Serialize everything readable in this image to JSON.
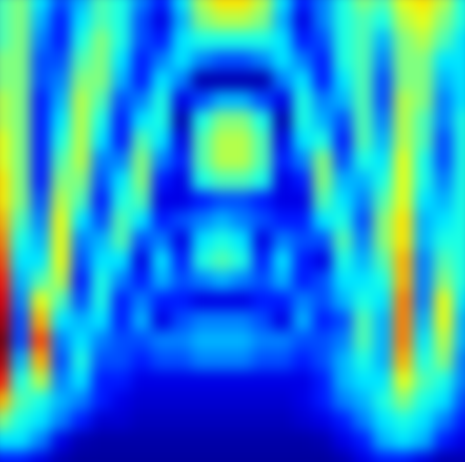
{
  "chart_data": {
    "type": "heatmap",
    "tick_labels": false,
    "zlim": [
      0,
      1
    ],
    "cells": [
      [
        0.45,
        0.5,
        0.35,
        0.2,
        0.3,
        0.45,
        0.4,
        0.25,
        0.15,
        0.35,
        0.55,
        0.65,
        0.65,
        0.55,
        0.35,
        0.15,
        0.25,
        0.4,
        0.5,
        0.45,
        0.6,
        0.65,
        0.55,
        0.4
      ],
      [
        0.45,
        0.5,
        0.3,
        0.15,
        0.35,
        0.45,
        0.4,
        0.2,
        0.1,
        0.3,
        0.5,
        0.55,
        0.55,
        0.5,
        0.3,
        0.1,
        0.25,
        0.4,
        0.45,
        0.4,
        0.55,
        0.6,
        0.5,
        0.4
      ],
      [
        0.45,
        0.5,
        0.25,
        0.15,
        0.4,
        0.5,
        0.4,
        0.2,
        0.15,
        0.35,
        0.4,
        0.4,
        0.4,
        0.4,
        0.35,
        0.15,
        0.2,
        0.4,
        0.45,
        0.3,
        0.5,
        0.55,
        0.45,
        0.35
      ],
      [
        0.5,
        0.5,
        0.2,
        0.2,
        0.45,
        0.5,
        0.35,
        0.15,
        0.25,
        0.35,
        0.25,
        0.2,
        0.2,
        0.25,
        0.35,
        0.25,
        0.15,
        0.4,
        0.45,
        0.25,
        0.5,
        0.5,
        0.35,
        0.35
      ],
      [
        0.5,
        0.5,
        0.2,
        0.25,
        0.5,
        0.5,
        0.3,
        0.15,
        0.35,
        0.25,
        0.05,
        0.05,
        0.05,
        0.05,
        0.25,
        0.35,
        0.15,
        0.35,
        0.45,
        0.2,
        0.5,
        0.5,
        0.3,
        0.35
      ],
      [
        0.55,
        0.5,
        0.15,
        0.3,
        0.55,
        0.45,
        0.2,
        0.25,
        0.4,
        0.1,
        0.2,
        0.3,
        0.3,
        0.2,
        0.1,
        0.4,
        0.25,
        0.3,
        0.45,
        0.2,
        0.55,
        0.5,
        0.25,
        0.35
      ],
      [
        0.55,
        0.5,
        0.15,
        0.35,
        0.55,
        0.4,
        0.15,
        0.35,
        0.4,
        0.05,
        0.4,
        0.5,
        0.5,
        0.4,
        0.05,
        0.4,
        0.3,
        0.2,
        0.45,
        0.25,
        0.55,
        0.45,
        0.25,
        0.4
      ],
      [
        0.6,
        0.5,
        0.15,
        0.4,
        0.55,
        0.35,
        0.15,
        0.45,
        0.35,
        0.1,
        0.45,
        0.55,
        0.55,
        0.45,
        0.1,
        0.35,
        0.4,
        0.15,
        0.45,
        0.3,
        0.55,
        0.45,
        0.2,
        0.4
      ],
      [
        0.6,
        0.5,
        0.15,
        0.45,
        0.55,
        0.25,
        0.25,
        0.5,
        0.25,
        0.15,
        0.45,
        0.55,
        0.55,
        0.45,
        0.15,
        0.25,
        0.5,
        0.2,
        0.4,
        0.35,
        0.6,
        0.4,
        0.2,
        0.4
      ],
      [
        0.65,
        0.5,
        0.15,
        0.5,
        0.5,
        0.2,
        0.35,
        0.5,
        0.15,
        0.1,
        0.4,
        0.45,
        0.45,
        0.4,
        0.1,
        0.15,
        0.5,
        0.3,
        0.3,
        0.4,
        0.6,
        0.4,
        0.25,
        0.4
      ],
      [
        0.65,
        0.5,
        0.2,
        0.55,
        0.45,
        0.15,
        0.4,
        0.45,
        0.1,
        0.1,
        0.15,
        0.2,
        0.2,
        0.15,
        0.1,
        0.1,
        0.45,
        0.35,
        0.25,
        0.45,
        0.6,
        0.35,
        0.3,
        0.4
      ],
      [
        0.7,
        0.45,
        0.25,
        0.6,
        0.35,
        0.2,
        0.45,
        0.35,
        0.15,
        0.2,
        0.25,
        0.3,
        0.25,
        0.2,
        0.15,
        0.15,
        0.35,
        0.4,
        0.2,
        0.5,
        0.65,
        0.3,
        0.35,
        0.4
      ],
      [
        0.75,
        0.4,
        0.3,
        0.6,
        0.25,
        0.3,
        0.45,
        0.2,
        0.25,
        0.1,
        0.35,
        0.4,
        0.35,
        0.1,
        0.25,
        0.2,
        0.2,
        0.45,
        0.25,
        0.5,
        0.65,
        0.3,
        0.4,
        0.4
      ],
      [
        0.8,
        0.35,
        0.35,
        0.6,
        0.2,
        0.35,
        0.35,
        0.1,
        0.35,
        0.15,
        0.4,
        0.45,
        0.4,
        0.15,
        0.35,
        0.15,
        0.1,
        0.4,
        0.3,
        0.45,
        0.7,
        0.25,
        0.45,
        0.4
      ],
      [
        0.85,
        0.3,
        0.45,
        0.55,
        0.15,
        0.4,
        0.25,
        0.15,
        0.3,
        0.2,
        0.25,
        0.3,
        0.25,
        0.2,
        0.3,
        0.15,
        0.2,
        0.35,
        0.35,
        0.4,
        0.7,
        0.25,
        0.5,
        0.4
      ],
      [
        0.9,
        0.25,
        0.6,
        0.45,
        0.2,
        0.4,
        0.15,
        0.25,
        0.15,
        0.15,
        0.1,
        0.1,
        0.1,
        0.15,
        0.15,
        0.25,
        0.2,
        0.3,
        0.4,
        0.35,
        0.75,
        0.25,
        0.6,
        0.35
      ],
      [
        0.95,
        0.2,
        0.7,
        0.35,
        0.3,
        0.35,
        0.15,
        0.3,
        0.1,
        0.2,
        0.25,
        0.25,
        0.25,
        0.2,
        0.1,
        0.3,
        0.15,
        0.2,
        0.45,
        0.3,
        0.75,
        0.3,
        0.6,
        0.3
      ],
      [
        1.0,
        0.2,
        0.8,
        0.25,
        0.35,
        0.25,
        0.2,
        0.2,
        0.25,
        0.25,
        0.3,
        0.3,
        0.3,
        0.25,
        0.25,
        0.2,
        0.2,
        0.25,
        0.45,
        0.3,
        0.75,
        0.35,
        0.55,
        0.3
      ],
      [
        0.95,
        0.3,
        0.7,
        0.2,
        0.4,
        0.2,
        0.2,
        0.15,
        0.2,
        0.2,
        0.25,
        0.25,
        0.25,
        0.2,
        0.2,
        0.15,
        0.2,
        0.3,
        0.4,
        0.3,
        0.7,
        0.4,
        0.5,
        0.25
      ],
      [
        0.85,
        0.4,
        0.55,
        0.25,
        0.35,
        0.15,
        0.15,
        0.1,
        0.1,
        0.1,
        0.1,
        0.1,
        0.1,
        0.1,
        0.1,
        0.1,
        0.15,
        0.3,
        0.35,
        0.35,
        0.6,
        0.45,
        0.4,
        0.25
      ],
      [
        0.7,
        0.45,
        0.4,
        0.3,
        0.25,
        0.15,
        0.1,
        0.08,
        0.08,
        0.08,
        0.08,
        0.08,
        0.08,
        0.08,
        0.08,
        0.1,
        0.15,
        0.25,
        0.3,
        0.4,
        0.5,
        0.4,
        0.35,
        0.2
      ],
      [
        0.5,
        0.4,
        0.35,
        0.25,
        0.15,
        0.08,
        0.08,
        0.06,
        0.06,
        0.06,
        0.06,
        0.06,
        0.06,
        0.06,
        0.06,
        0.08,
        0.1,
        0.15,
        0.25,
        0.35,
        0.4,
        0.35,
        0.25,
        0.15
      ],
      [
        0.35,
        0.35,
        0.25,
        0.1,
        0.05,
        0.04,
        0.04,
        0.04,
        0.04,
        0.04,
        0.04,
        0.04,
        0.04,
        0.04,
        0.04,
        0.04,
        0.05,
        0.1,
        0.15,
        0.3,
        0.35,
        0.3,
        0.15,
        0.1
      ],
      [
        0.15,
        0.15,
        0.1,
        0.05,
        0.03,
        0.03,
        0.03,
        0.03,
        0.03,
        0.03,
        0.03,
        0.03,
        0.03,
        0.03,
        0.03,
        0.03,
        0.03,
        0.05,
        0.1,
        0.15,
        0.15,
        0.1,
        0.05,
        0.05
      ]
    ]
  }
}
